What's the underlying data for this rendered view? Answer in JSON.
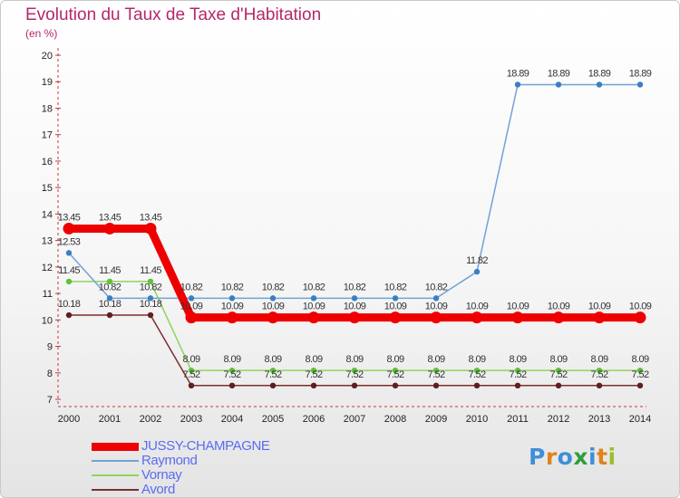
{
  "title": "Evolution du Taux de Taxe d'Habitation",
  "subtitle": "(en %)",
  "brand": {
    "text": "Proxiti",
    "letter_colors": [
      "#3f8fd8",
      "#e0831c",
      "#3f8fd8",
      "#2f9e3a",
      "#3f8fd8",
      "#e0831c",
      "#9bbf2a"
    ]
  },
  "chart_data": {
    "type": "line",
    "x": [
      "2000",
      "2001",
      "2002",
      "2003",
      "2004",
      "2005",
      "2006",
      "2007",
      "2008",
      "2009",
      "2010",
      "2011",
      "2012",
      "2013",
      "2014"
    ],
    "ylim": [
      7,
      20
    ],
    "yticks": [
      7,
      8,
      9,
      10,
      11,
      12,
      13,
      14,
      15,
      16,
      17,
      18,
      19,
      20
    ],
    "grid": false,
    "legend_position": "bottom-left",
    "series": [
      {
        "name": "JUSSY-CHAMPAGNE",
        "color": "#ee0000",
        "style": "thick",
        "values": [
          13.45,
          13.45,
          13.45,
          10.09,
          10.09,
          10.09,
          10.09,
          10.09,
          10.09,
          10.09,
          10.09,
          10.09,
          10.09,
          10.09,
          10.09
        ],
        "labels": [
          "13.45",
          "13.45",
          "13.45",
          "10.09",
          "10.09",
          "10.09",
          "10.09",
          "10.09",
          "10.09",
          "10.09",
          "10.09",
          "10.09",
          "10.09",
          "10.09",
          "10.09"
        ]
      },
      {
        "name": "Raymond",
        "color": "#6fa3d8",
        "marker_color": "#3a7fc4",
        "values": [
          12.53,
          10.82,
          10.82,
          10.82,
          10.82,
          10.82,
          10.82,
          10.82,
          10.82,
          10.82,
          11.82,
          18.89,
          18.89,
          18.89,
          18.89
        ],
        "labels": [
          "12.53",
          "10.82",
          "10.82",
          "10.82",
          "10.82",
          "10.82",
          "10.82",
          "10.82",
          "10.82",
          "10.82",
          "11.82",
          "18.89",
          "18.89",
          "18.89",
          "18.89"
        ]
      },
      {
        "name": "Vornay",
        "color": "#8fd45e",
        "marker_color": "#5ec23a",
        "values": [
          11.45,
          11.45,
          11.45,
          8.09,
          8.09,
          8.09,
          8.09,
          8.09,
          8.09,
          8.09,
          8.09,
          8.09,
          8.09,
          8.09,
          8.09
        ],
        "labels": [
          "11.45",
          "11.45",
          "11.45",
          "8.09",
          "8.09",
          "8.09",
          "8.09",
          "8.09",
          "8.09",
          "8.09",
          "8.09",
          "8.09",
          "8.09",
          "8.09",
          "8.09"
        ]
      },
      {
        "name": "Avord",
        "color": "#7a2f2f",
        "marker_color": "#5e1f1f",
        "values": [
          10.18,
          10.18,
          10.18,
          7.52,
          7.52,
          7.52,
          7.52,
          7.52,
          7.52,
          7.52,
          7.52,
          7.52,
          7.52,
          7.52,
          7.52
        ],
        "labels": [
          "10.18",
          "10.18",
          "10.18",
          "7.52",
          "7.52",
          "7.52",
          "7.52",
          "7.52",
          "7.52",
          "7.52",
          "7.52",
          "7.52",
          "7.52",
          "7.52",
          "7.52"
        ]
      }
    ]
  }
}
